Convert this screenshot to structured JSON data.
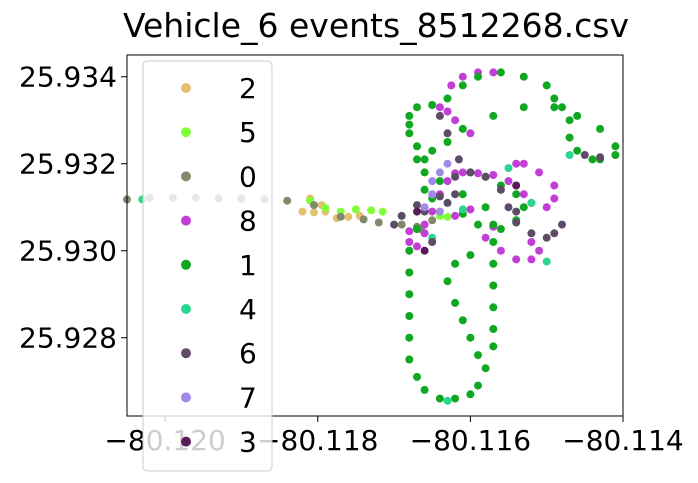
{
  "chart_data": {
    "type": "scatter",
    "title": "Vehicle_6 events_8512268.csv",
    "xlabel": "",
    "ylabel": "",
    "xlim": [
      -80.1205,
      -80.114
    ],
    "ylim": [
      25.9262,
      25.9345
    ],
    "x_ticks": [
      -80.12,
      -80.118,
      -80.116,
      -80.114
    ],
    "x_tick_labels": [
      "−80.120",
      "−80.118",
      "−80.116",
      "−80.114"
    ],
    "y_ticks": [
      25.928,
      25.93,
      25.932,
      25.934
    ],
    "y_tick_labels": [
      "25.928",
      "25.930",
      "25.932",
      "25.934"
    ],
    "grid": false,
    "legend_position": "upper-left",
    "series": [
      {
        "name": "2",
        "color": "#e3c16f",
        "points": [
          [
            -80.1182,
            25.9309
          ],
          [
            -80.11805,
            25.93088
          ],
          [
            -80.11795,
            25.93105
          ],
          [
            -80.1181,
            25.9312
          ],
          [
            -80.1179,
            25.9309
          ],
          [
            -80.11775,
            25.93075
          ],
          [
            -80.1176,
            25.93078
          ],
          [
            -80.11745,
            25.9308
          ]
        ]
      },
      {
        "name": "5",
        "color": "#7fff3a",
        "points": [
          [
            -80.1181,
            25.93115
          ],
          [
            -80.1179,
            25.93098
          ],
          [
            -80.1177,
            25.9309
          ],
          [
            -80.1175,
            25.93095
          ],
          [
            -80.1173,
            25.93093
          ],
          [
            -80.11715,
            25.9309
          ],
          [
            -80.1164,
            25.9308
          ],
          [
            -80.1163,
            25.93078
          ]
        ]
      },
      {
        "name": "0",
        "color": "#808a6a",
        "points": [
          [
            -80.1205,
            25.93118
          ],
          [
            -80.1202,
            25.93122
          ],
          [
            -80.1199,
            25.93122
          ],
          [
            -80.1196,
            25.93122
          ],
          [
            -80.1193,
            25.9312
          ],
          [
            -80.119,
            25.9312
          ],
          [
            -80.1187,
            25.93118
          ],
          [
            -80.1184,
            25.93115
          ],
          [
            -80.11805,
            25.93105
          ],
          [
            -80.1177,
            25.93078
          ],
          [
            -80.1174,
            25.93072
          ],
          [
            -80.1172,
            25.93065
          ],
          [
            -80.1169,
            25.9306
          ],
          [
            -80.1167,
            25.93055
          ],
          [
            -80.1165,
            25.9307
          ],
          [
            -80.11665,
            25.9305
          ]
        ]
      },
      {
        "name": "8",
        "color": "#c23fd6",
        "points": [
          [
            -80.1168,
            25.9302
          ],
          [
            -80.1167,
            25.9301
          ],
          [
            -80.1166,
            25.9304
          ],
          [
            -80.1165,
            25.9309
          ],
          [
            -80.1164,
            25.9313
          ],
          [
            -80.1163,
            25.9316
          ],
          [
            -80.1162,
            25.93178
          ],
          [
            -80.1161,
            25.9318
          ],
          [
            -80.1159,
            25.93178
          ],
          [
            -80.1157,
            25.93174
          ],
          [
            -80.1155,
            25.9316
          ],
          [
            -80.1153,
            25.9313
          ],
          [
            -80.1152,
            25.9311
          ],
          [
            -80.115,
            25.931
          ],
          [
            -80.1149,
            25.9312
          ],
          [
            -80.1149,
            25.9315
          ],
          [
            -80.1151,
            25.9318
          ],
          [
            -80.1153,
            25.932
          ],
          [
            -80.1154,
            25.932
          ],
          [
            -80.1157,
            25.93055
          ],
          [
            -80.1158,
            25.9303
          ],
          [
            -80.1156,
            25.93
          ],
          [
            -80.1154,
            25.9298
          ],
          [
            -80.1152,
            25.9298
          ],
          [
            -80.1151,
            25.93
          ],
          [
            -80.1152,
            25.9302
          ],
          [
            -80.116,
            25.9327
          ],
          [
            -80.1162,
            25.933
          ],
          [
            -80.1163,
            25.9332
          ],
          [
            -80.1164,
            25.9333
          ],
          [
            -80.11625,
            25.9338
          ],
          [
            -80.1161,
            25.934
          ],
          [
            -80.1159,
            25.9341
          ],
          [
            -80.1157,
            25.9341
          ],
          [
            -80.116,
            25.93095
          ],
          [
            -80.1162,
            25.9308
          ],
          [
            -80.1166,
            25.9306
          ],
          [
            -80.1168,
            25.93045
          ]
        ]
      },
      {
        "name": "1",
        "color": "#10a821",
        "points": [
          [
            -80.1165,
            25.9312
          ],
          [
            -80.1166,
            25.9314
          ],
          [
            -80.1166,
            25.9318
          ],
          [
            -80.1167,
            25.9321
          ],
          [
            -80.1167,
            25.9324
          ],
          [
            -80.1168,
            25.9327
          ],
          [
            -80.1168,
            25.9329
          ],
          [
            -80.1168,
            25.9331
          ],
          [
            -80.1167,
            25.9333
          ],
          [
            -80.1165,
            25.93335
          ],
          [
            -80.1163,
            25.9335
          ],
          [
            -80.1161,
            25.9338
          ],
          [
            -80.1159,
            25.934
          ],
          [
            -80.1156,
            25.9341
          ],
          [
            -80.1153,
            25.934
          ],
          [
            -80.115,
            25.9338
          ],
          [
            -80.1149,
            25.9335
          ],
          [
            -80.1148,
            25.9333
          ],
          [
            -80.1147,
            25.933
          ],
          [
            -80.1147,
            25.9326
          ],
          [
            -80.1146,
            25.9323
          ],
          [
            -80.1144,
            25.9321
          ],
          [
            -80.1143,
            25.9321
          ],
          [
            -80.1141,
            25.9322
          ],
          [
            -80.1141,
            25.9324
          ],
          [
            -80.1143,
            25.9328
          ],
          [
            -80.1146,
            25.9331
          ],
          [
            -80.1149,
            25.9333
          ],
          [
            -80.1153,
            25.9333
          ],
          [
            -80.1157,
            25.9331
          ],
          [
            -80.1161,
            25.9328
          ],
          [
            -80.1163,
            25.9325
          ],
          [
            -80.1165,
            25.9323
          ],
          [
            -80.1166,
            25.9321
          ],
          [
            -80.1164,
            25.9316
          ],
          [
            -80.1161,
            25.9313
          ],
          [
            -80.1158,
            25.931
          ],
          [
            -80.1157,
            25.9306
          ],
          [
            -80.1157,
            25.9302
          ],
          [
            -80.1157,
            25.9297
          ],
          [
            -80.1157,
            25.9292
          ],
          [
            -80.1157,
            25.9287
          ],
          [
            -80.1157,
            25.9282
          ],
          [
            -80.1157,
            25.9278
          ],
          [
            -80.1158,
            25.9273
          ],
          [
            -80.1159,
            25.9269
          ],
          [
            -80.116,
            25.9267
          ],
          [
            -80.1162,
            25.9266
          ],
          [
            -80.1164,
            25.9266
          ],
          [
            -80.1166,
            25.9268
          ],
          [
            -80.1167,
            25.9271
          ],
          [
            -80.1168,
            25.9275
          ],
          [
            -80.1168,
            25.928
          ],
          [
            -80.1168,
            25.9285
          ],
          [
            -80.1168,
            25.929
          ],
          [
            -80.1168,
            25.9295
          ],
          [
            -80.1168,
            25.93
          ],
          [
            -80.1167,
            25.9305
          ],
          [
            -80.116,
            25.9299
          ],
          [
            -80.1162,
            25.9297
          ],
          [
            -80.1163,
            25.9293
          ],
          [
            -80.1162,
            25.9288
          ],
          [
            -80.1161,
            25.9284
          ],
          [
            -80.116,
            25.928
          ],
          [
            -80.1159,
            25.9276
          ],
          [
            -80.1161,
            25.93085
          ],
          [
            -80.1159,
            25.9306
          ],
          [
            -80.1156,
            25.9305
          ],
          [
            -80.1154,
            25.9307
          ],
          [
            -80.1153,
            25.931
          ],
          [
            -80.1154,
            25.9313
          ],
          [
            -80.1156,
            25.9315
          ],
          [
            -80.1158,
            25.9317
          ],
          [
            -80.116,
            25.9318
          ]
        ]
      },
      {
        "name": "4",
        "color": "#2bd68f",
        "points": [
          [
            -80.1203,
            25.93118
          ],
          [
            -80.1161,
            25.93095
          ],
          [
            -80.1165,
            25.9303
          ],
          [
            -80.1155,
            25.9319
          ],
          [
            -80.1152,
            25.9311
          ],
          [
            -80.115,
            25.92975
          ],
          [
            -80.1163,
            25.92655
          ],
          [
            -80.1147,
            25.9322
          ]
        ]
      },
      {
        "name": "6",
        "color": "#5e4c66",
        "points": [
          [
            -80.117,
            25.9306
          ],
          [
            -80.1169,
            25.9308
          ],
          [
            -80.1166,
            25.9309
          ],
          [
            -80.1163,
            25.9311
          ],
          [
            -80.1162,
            25.9313
          ],
          [
            -80.1164,
            25.93125
          ],
          [
            -80.1162,
            25.9317
          ],
          [
            -80.11615,
            25.9321
          ],
          [
            -80.1163,
            25.9327
          ],
          [
            -80.1164,
            25.9331
          ],
          [
            -80.116,
            25.9318
          ],
          [
            -80.1158,
            25.9317
          ],
          [
            -80.1156,
            25.9314
          ],
          [
            -80.1155,
            25.931
          ],
          [
            -80.1154,
            25.9309
          ],
          [
            -80.1154,
            25.93065
          ],
          [
            -80.1152,
            25.9304
          ],
          [
            -80.115,
            25.9303
          ],
          [
            -80.1149,
            25.9304
          ],
          [
            -80.1148,
            25.9306
          ],
          [
            -80.1145,
            25.9322
          ],
          [
            -80.1143,
            25.93215
          ],
          [
            -80.1165,
            25.9302
          ],
          [
            -80.1167,
            25.93105
          ]
        ]
      },
      {
        "name": "7",
        "color": "#a08ae8",
        "points": [
          [
            -80.1166,
            25.931
          ],
          [
            -80.1165,
            25.9313
          ],
          [
            -80.1165,
            25.9316
          ],
          [
            -80.1164,
            25.9318
          ],
          [
            -80.1163,
            25.932
          ],
          [
            -80.1164,
            25.9309
          ]
        ]
      },
      {
        "name": "3",
        "color": "#5a1a5a",
        "points": [
          [
            -80.1166,
            25.93
          ],
          [
            -80.1154,
            25.9315
          ],
          [
            -80.1167,
            25.9309
          ]
        ]
      }
    ]
  }
}
